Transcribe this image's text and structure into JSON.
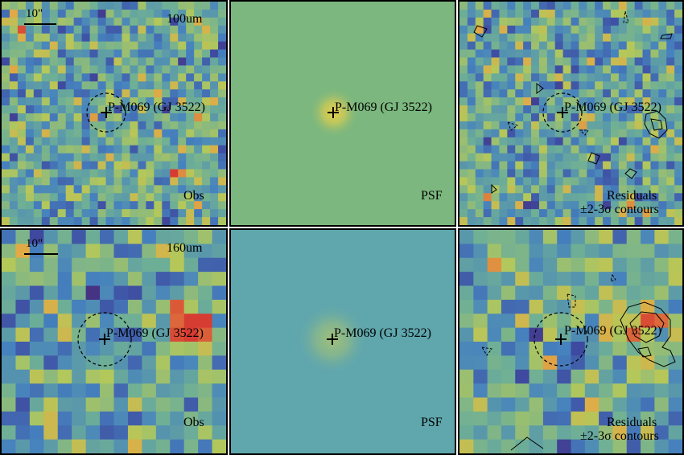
{
  "source_name": "P-M069 (GJ 3522)",
  "scale_text": "10\"",
  "rows": [
    {
      "band": "100um",
      "panels": [
        {
          "kind": "obs",
          "label_lines": [
            "Obs"
          ]
        },
        {
          "kind": "psf",
          "label_lines": [
            "PSF"
          ]
        },
        {
          "kind": "residual",
          "label_lines": [
            "Residuals",
            "±2-3σ contours"
          ]
        }
      ]
    },
    {
      "band": "160um",
      "panels": [
        {
          "kind": "obs",
          "label_lines": [
            "Obs"
          ]
        },
        {
          "kind": "psf",
          "label_lines": [
            "PSF"
          ]
        },
        {
          "kind": "residual",
          "label_lines": [
            "Residuals",
            "±2-3σ contours"
          ]
        }
      ]
    }
  ],
  "colors": {
    "psf_background_top": "#7bb77e",
    "psf_background_bottom": "#5fa6ad",
    "psf_core": "#e8d04a",
    "frame": "#000000"
  }
}
